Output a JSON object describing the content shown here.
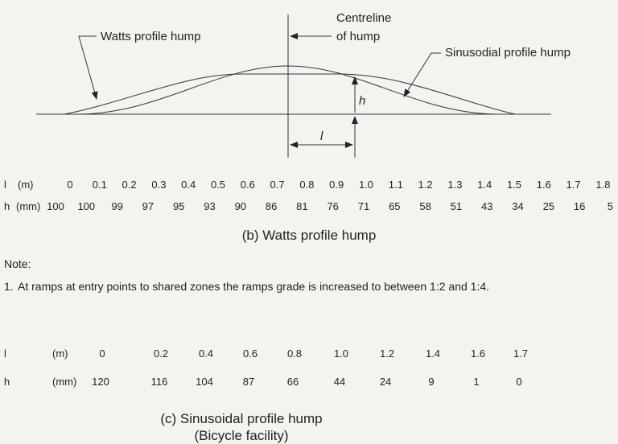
{
  "diagram": {
    "watts_label": "Watts profile hump",
    "centreline_label": [
      "Centreline",
      "of hump"
    ],
    "sinusoidal_label": "Sinusodial profile hump",
    "h_label": "h",
    "l_label": "l"
  },
  "watts_table": {
    "l_row": {
      "symbol": "l",
      "unit": "(m)",
      "values": [
        "0",
        "0.1",
        "0.2",
        "0.3",
        "0.4",
        "0.5",
        "0.6",
        "0.7",
        "0.8",
        "0.9",
        "1.0",
        "1.1",
        "1.2",
        "1.3",
        "1.4",
        "1.5",
        "1.6",
        "1.7",
        "1.8"
      ]
    },
    "h_row": {
      "symbol": "h",
      "unit": "(mm)",
      "values": [
        "100",
        "100",
        "99",
        "97",
        "95",
        "93",
        "90",
        "86",
        "81",
        "76",
        "71",
        "65",
        "58",
        "51",
        "43",
        "34",
        "25",
        "16",
        "5"
      ]
    },
    "caption": "(b) Watts profile hump"
  },
  "note": {
    "heading": "Note:",
    "number": "1.",
    "text": "At ramps at entry points to shared zones the ramps grade is increased to between 1:2 and 1:4."
  },
  "sinusoidal_table": {
    "l_row": {
      "symbol": "l",
      "unit": "(m)",
      "values": [
        "0",
        "0.2",
        "0.4",
        "0.6",
        "0.8",
        "1.0",
        "1.2",
        "1.4",
        "1.6",
        "1.7"
      ]
    },
    "h_row": {
      "symbol": "h",
      "unit": "(mm)",
      "values": [
        "120",
        "116",
        "104",
        "87",
        "66",
        "44",
        "24",
        "9",
        "1",
        "0"
      ]
    },
    "caption": [
      "(c) Sinusoidal profile hump",
      "(Bicycle facility)"
    ]
  }
}
